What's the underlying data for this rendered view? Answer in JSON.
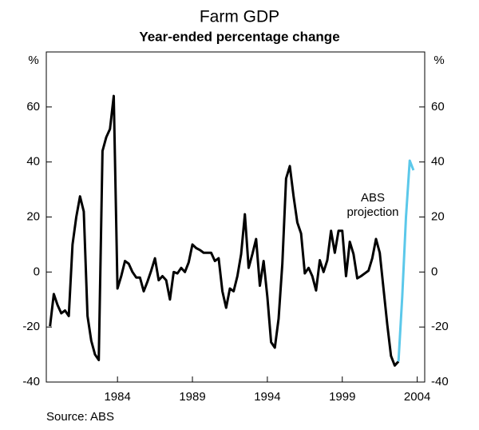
{
  "chart_data": {
    "type": "line",
    "title": "Farm GDP",
    "subtitle": "Year-ended percentage change",
    "y_unit_left": "%",
    "y_unit_right": "%",
    "source": "Source: ABS",
    "annotation": [
      "ABS",
      "projection"
    ],
    "xlim": [
      1979.25,
      2004.5
    ],
    "xticks": [
      1984,
      1989,
      1994,
      1999,
      2004
    ],
    "ylim": [
      -40,
      80
    ],
    "yticks": [
      -40,
      -20,
      0,
      20,
      40,
      60
    ],
    "grid": false,
    "series": [
      {
        "color": "#000000",
        "x": [
          1979.5,
          1979.75,
          1980,
          1980.25,
          1980.5,
          1980.75,
          1981,
          1981.25,
          1981.5,
          1981.75,
          1982,
          1982.25,
          1982.5,
          1982.75,
          1983,
          1983.25,
          1983.5,
          1983.75,
          1984,
          1984.25,
          1984.5,
          1984.75,
          1985,
          1985.25,
          1985.5,
          1985.75,
          1986,
          1986.25,
          1986.5,
          1986.75,
          1987,
          1987.25,
          1987.5,
          1987.75,
          1988,
          1988.25,
          1988.5,
          1988.75,
          1989,
          1989.25,
          1989.5,
          1989.75,
          1990,
          1990.25,
          1990.5,
          1990.75,
          1991,
          1991.25,
          1991.5,
          1991.75,
          1992,
          1992.25,
          1992.5,
          1992.75,
          1993,
          1993.25,
          1993.5,
          1993.75,
          1994,
          1994.25,
          1994.5,
          1994.75,
          1995,
          1995.25,
          1995.5,
          1995.75,
          1996,
          1996.25,
          1996.5,
          1996.75,
          1997,
          1997.25,
          1997.5,
          1997.75,
          1998,
          1998.25,
          1998.5,
          1998.75,
          1999,
          1999.25,
          1999.5,
          1999.75,
          2000,
          2000.25,
          2000.5,
          2000.75,
          2001,
          2001.25,
          2001.5,
          2001.75,
          2002,
          2002.25,
          2002.5,
          2002.75
        ],
        "values": [
          -19.7,
          -8,
          -12,
          -15,
          -14,
          -16,
          10,
          20,
          27.5,
          22,
          -16,
          -25,
          -30,
          -32,
          44,
          49,
          52,
          64,
          -6,
          -1.5,
          4,
          3,
          0,
          -2,
          -2,
          -7,
          -3.5,
          0.5,
          5,
          -3,
          -1.5,
          -3,
          -10,
          0,
          -0.5,
          1.5,
          0,
          3.5,
          10,
          8.7,
          8,
          7,
          7,
          7,
          4,
          5,
          -7,
          -13,
          -6,
          -7,
          -1.5,
          6.5,
          21,
          1.5,
          6.5,
          12,
          -5,
          4,
          -9,
          -25.5,
          -27.5,
          -17,
          3,
          34,
          38.5,
          27.5,
          18,
          14,
          -0.5,
          1.5,
          -1.5,
          -6.7,
          4.3,
          0,
          4.3,
          15,
          7,
          15,
          15,
          -1.5,
          11,
          6.5,
          -2.3,
          -1.5,
          -0.5,
          0.5,
          5,
          12,
          7,
          -6,
          -19,
          -30.5,
          -34,
          -32.5
        ]
      },
      {
        "color": "#5bc8ea",
        "x": [
          2002.75,
          2003,
          2003.25,
          2003.5,
          2003.75
        ],
        "values": [
          -32.5,
          -9,
          20,
          40.5,
          37
        ]
      }
    ]
  }
}
